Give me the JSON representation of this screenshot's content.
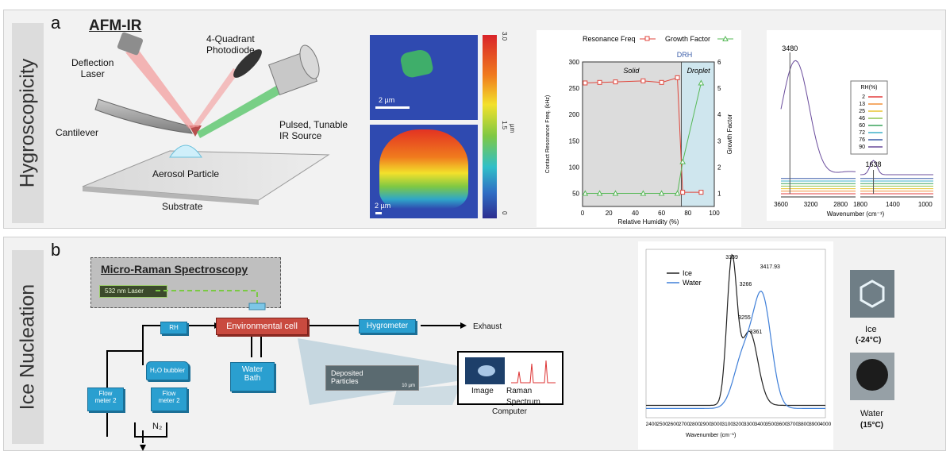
{
  "panel_a": {
    "letter": "a",
    "side_label": "Hygroscopicity",
    "afm_title": "AFM-IR",
    "labels": {
      "deflection_laser": [
        "Deflection",
        "Laser"
      ],
      "photodiode": [
        "4-Quadrant",
        "Photodiode"
      ],
      "cantilever": "Cantilever",
      "ir_source": [
        "Pulsed, Tunable",
        "IR Source"
      ],
      "particle": "Aerosol Particle",
      "substrate": "Substrate"
    },
    "afm_map": {
      "scale_top": "2 µm",
      "scale_bottom": "2 µm",
      "colorbar_ticks": [
        "3.0",
        "1.5",
        "0"
      ],
      "colorbar_unit": "µm"
    }
  },
  "chart_rh": {
    "type": "line",
    "legend": [
      "Resonance Freq",
      "Growth Factor"
    ],
    "xlabel": "Relative Humidity (%)",
    "ylabel_left": "Contact Resonance Freq. (kHz)",
    "ylabel_right": "Growth Factor",
    "xlim": [
      0,
      100
    ],
    "ylim_left": [
      25,
      300
    ],
    "ylim_right": [
      0.5,
      6
    ],
    "x_ticks": [
      "0",
      "20",
      "40",
      "60",
      "80",
      "100"
    ],
    "y_ticks_left": [
      "50",
      "100",
      "150",
      "200",
      "250",
      "300"
    ],
    "y_ticks_right": [
      "1",
      "2",
      "3",
      "4",
      "5",
      "6"
    ],
    "region_labels": [
      "Solid",
      "Droplet"
    ],
    "drh_label": "DRH",
    "drh_x": 75,
    "series": [
      {
        "name": "Resonance Freq",
        "color": "#e0463c",
        "axis": "left",
        "x": [
          2,
          13,
          25,
          46,
          60,
          72,
          76,
          90
        ],
        "y": [
          260,
          261,
          262,
          264,
          261,
          270,
          52,
          52
        ]
      },
      {
        "name": "Growth Factor",
        "color": "#57b957",
        "axis": "right",
        "x": [
          2,
          13,
          25,
          46,
          60,
          72,
          76,
          90
        ],
        "y": [
          1.0,
          1.0,
          1.0,
          1.0,
          1.0,
          1.0,
          2.2,
          5.2
        ]
      }
    ]
  },
  "chart_ir": {
    "type": "line",
    "xlabel": "Wavenumber (cm⁻¹)",
    "x_ticks": [
      "3600",
      "3200",
      "2800",
      "1800",
      "1400",
      "1000"
    ],
    "peak_labels": [
      "3480",
      "1638"
    ],
    "legend_title": "RH(%)",
    "legend_items": [
      {
        "name": "2",
        "color": "#e33d3d"
      },
      {
        "name": "13",
        "color": "#f2903a"
      },
      {
        "name": "25",
        "color": "#e8c42f"
      },
      {
        "name": "46",
        "color": "#8fc650"
      },
      {
        "name": "60",
        "color": "#3aa35b"
      },
      {
        "name": "72",
        "color": "#3fb0c8"
      },
      {
        "name": "76",
        "color": "#3a5ca8"
      },
      {
        "name": "90",
        "color": "#6a4c9c"
      }
    ]
  },
  "panel_b": {
    "letter": "b",
    "side_label": "Ice Nucleation",
    "raman_box_title": "Micro-Raman Spectroscopy",
    "laser_label": "532 nm Laser",
    "env_cell": "Environmental cell",
    "rh": "RH",
    "hygrometer": "Hygrometer",
    "exhaust": "Exhaust",
    "bubbler": "H₂O bubbler",
    "flow1": [
      "Flow",
      "meter 2"
    ],
    "flow2": [
      "Flow",
      "meter 2"
    ],
    "water_bath": [
      "Water",
      "Bath"
    ],
    "n2": "N₂",
    "deposited": [
      "Deposited",
      "Particles"
    ],
    "scale_10": "10 µm",
    "image_label": "Image",
    "raman_spectrum_label": "Raman Spectrum",
    "computer_label": "Computer"
  },
  "chart_raman": {
    "type": "line",
    "legend": [
      "Ice",
      "Water"
    ],
    "xlabel": "Wavenumber (cm⁻¹)",
    "x_ticks": [
      "2400",
      "2500",
      "2600",
      "2700",
      "2800",
      "2900",
      "3000",
      "3100",
      "3200",
      "3300",
      "3400",
      "3500",
      "3600",
      "3700",
      "3800",
      "3900",
      "4000"
    ],
    "xlim": [
      2350,
      4000
    ],
    "peak_labels": [
      "3139",
      "3266",
      "3255",
      "3361",
      "3417.93"
    ],
    "series": [
      {
        "name": "Ice",
        "color": "#222222"
      },
      {
        "name": "Water",
        "color": "#3f7fd8"
      }
    ]
  },
  "ice_water_images": {
    "ice_label": "Ice",
    "ice_temp": "(-24°C)",
    "water_label": "Water",
    "water_temp": "(15°C)"
  }
}
